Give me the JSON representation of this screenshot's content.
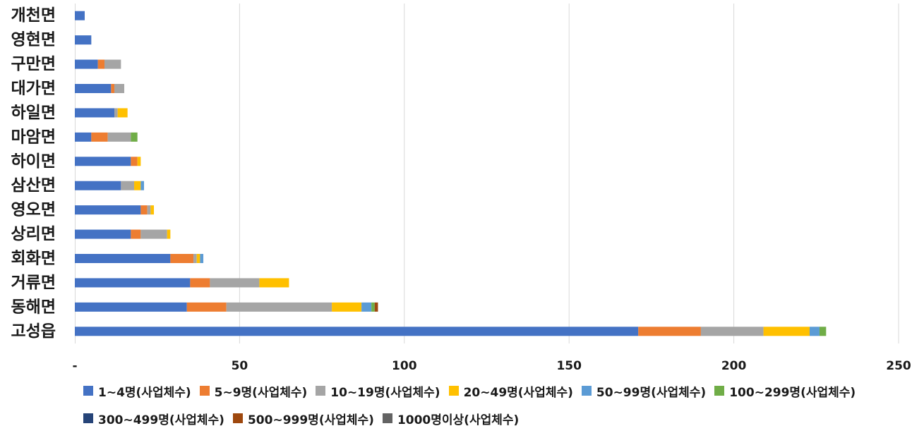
{
  "chart_data": {
    "type": "bar",
    "orientation": "horizontal",
    "stacked": true,
    "title": "",
    "xlabel": "",
    "ylabel": "",
    "xlim": [
      0,
      250
    ],
    "xticks": [
      0,
      50,
      100,
      150,
      200,
      250
    ],
    "xtick_labels": [
      "-",
      "50",
      "100",
      "150",
      "200",
      "250"
    ],
    "grid": "vertical",
    "legend_position": "bottom",
    "categories": [
      "개천면",
      "영현면",
      "구만면",
      "대가면",
      "하일면",
      "마암면",
      "하이면",
      "삼산면",
      "영오면",
      "상리면",
      "회화면",
      "거류면",
      "동해면",
      "고성읍"
    ],
    "series": [
      {
        "name": "1~4명(사업체수)",
        "color": "#4472C4",
        "values": [
          3,
          5,
          7,
          11,
          12,
          5,
          17,
          14,
          20,
          17,
          29,
          35,
          34,
          171
        ]
      },
      {
        "name": "5~9명(사업체수)",
        "color": "#ED7D31",
        "values": [
          0,
          0,
          2,
          1,
          0,
          5,
          2,
          0,
          2,
          3,
          7,
          6,
          12,
          19
        ]
      },
      {
        "name": "10~19명(사업체수)",
        "color": "#A5A5A5",
        "values": [
          0,
          0,
          5,
          3,
          1,
          7,
          0,
          4,
          1,
          8,
          1,
          15,
          32,
          19
        ]
      },
      {
        "name": "20~49명(사업체수)",
        "color": "#FFC000",
        "values": [
          0,
          0,
          0,
          0,
          3,
          0,
          1,
          2,
          1,
          1,
          1,
          9,
          9,
          14
        ]
      },
      {
        "name": "50~99명(사업체수)",
        "color": "#5B9BD5",
        "values": [
          0,
          0,
          0,
          0,
          0,
          0,
          0,
          1,
          0,
          0,
          1,
          0,
          3,
          3
        ]
      },
      {
        "name": "100~299명(사업체수)",
        "color": "#70AD47",
        "values": [
          0,
          0,
          0,
          0,
          0,
          2,
          0,
          0,
          0,
          0,
          0,
          0,
          1,
          2
        ]
      },
      {
        "name": "300~499명(사업체수)",
        "color": "#264478",
        "values": [
          0,
          0,
          0,
          0,
          0,
          0,
          0,
          0,
          0,
          0,
          0,
          0,
          0,
          0
        ]
      },
      {
        "name": "500~999명(사업체수)",
        "color": "#9E480E",
        "values": [
          0,
          0,
          0,
          0,
          0,
          0,
          0,
          0,
          0,
          0,
          0,
          0,
          1,
          0
        ]
      },
      {
        "name": "1000명이상(사업체수)",
        "color": "#636363",
        "values": [
          0,
          0,
          0,
          0,
          0,
          0,
          0,
          0,
          0,
          0,
          0,
          0,
          0,
          0
        ]
      }
    ]
  }
}
